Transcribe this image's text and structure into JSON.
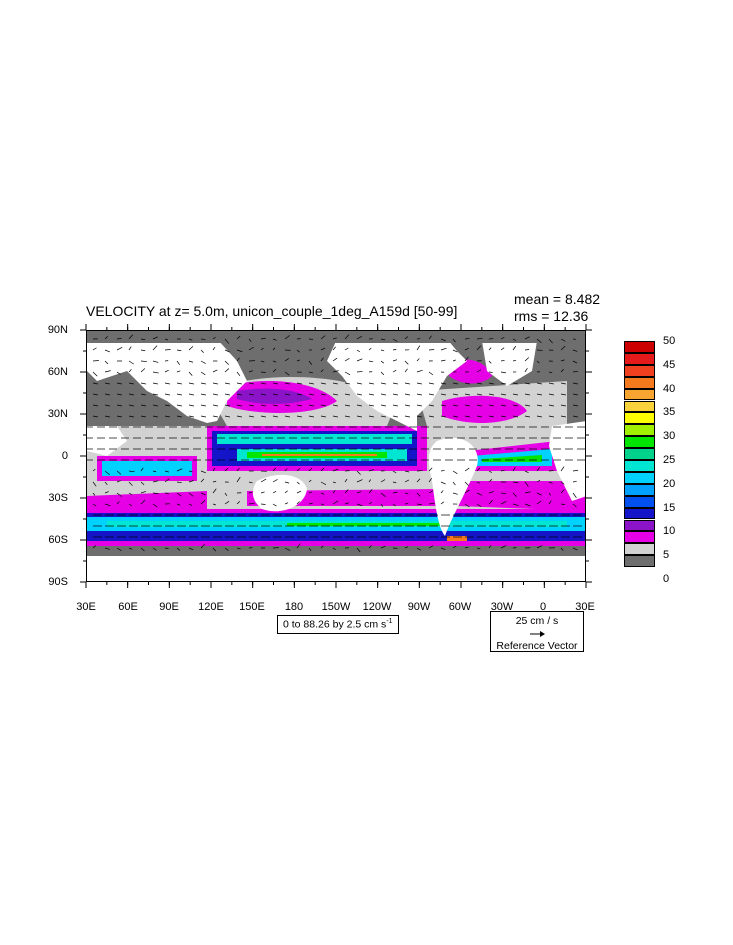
{
  "title": "VELOCITY at z=   5.0m, unicon_couple_1deg_A159d [50-99]",
  "stats": {
    "mean": "mean = 8.482",
    "rms": "rms = 12.36"
  },
  "lat_labels": [
    "90N",
    "60N",
    "30N",
    "0",
    "30S",
    "60S",
    "90S"
  ],
  "lon_labels": [
    "30E",
    "60E",
    "90E",
    "120E",
    "150E",
    "180",
    "150W",
    "120W",
    "90W",
    "60W",
    "30W",
    "0",
    "30E"
  ],
  "contour_info": "0 to 88.26 by 2.5 cm s",
  "contour_info_sup": "-1",
  "reference_vector": {
    "value": "25 cm / s",
    "label": "Reference Vector"
  },
  "colorbar": {
    "labels": [
      "50",
      "45",
      "40",
      "35",
      "30",
      "25",
      "20",
      "15",
      "10",
      "5",
      "0"
    ],
    "colors": [
      "#cc0000",
      "#e61a1a",
      "#f04020",
      "#f57a1e",
      "#f7a530",
      "#fad23c",
      "#ffff00",
      "#a0f000",
      "#00e600",
      "#00d28c",
      "#00e6d2",
      "#00d2ff",
      "#00a0ff",
      "#0050f0",
      "#1414c8",
      "#8c14c8",
      "#e600e6",
      "#d2d2d2",
      "#6e6e6e"
    ]
  },
  "field_colors": {
    "land": "#ffffff",
    "slow": "#6e6e6e",
    "gray": "#d2d2d2",
    "magenta": "#e600e6",
    "purple": "#8c14c8",
    "blue": "#1414c8",
    "cyan": "#00e6d2",
    "green": "#00e600",
    "yellow": "#ffff00",
    "orange": "#f57a1e",
    "red": "#cc0000"
  }
}
